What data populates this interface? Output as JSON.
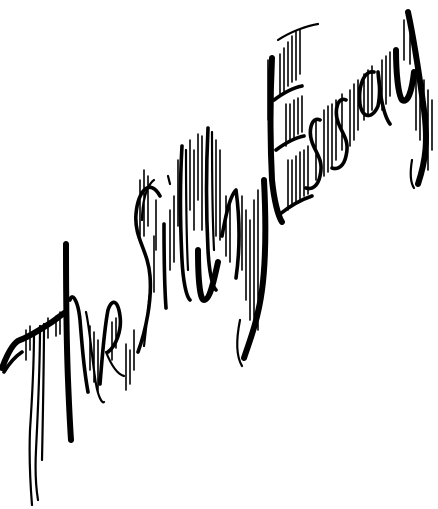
{
  "signature": {
    "text": "The Silly Essay",
    "ink_color": "#000000",
    "background_color": "#ffffff"
  }
}
